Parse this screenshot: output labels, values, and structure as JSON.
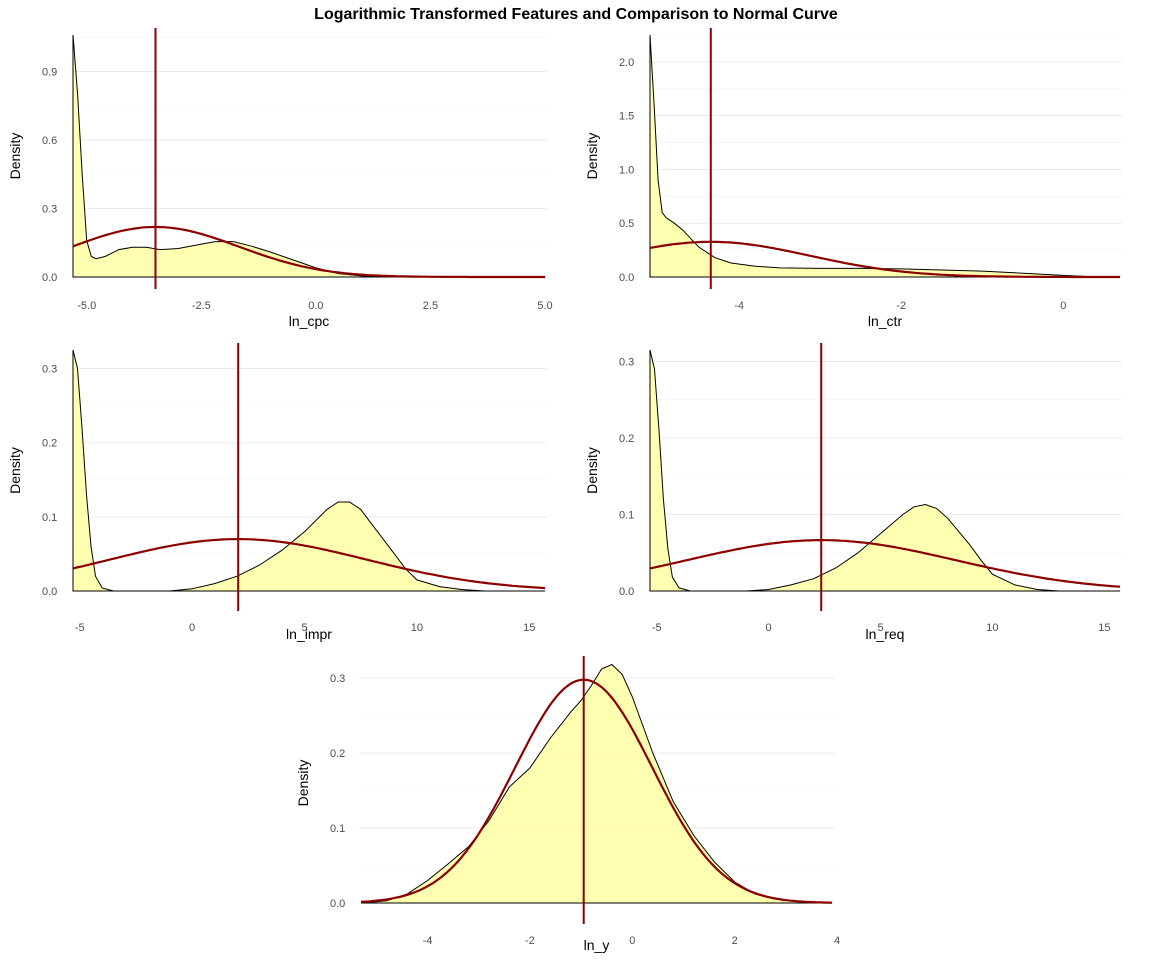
{
  "figure": {
    "title": "Logarithmic Transformed Features and Comparison to Normal Curve"
  },
  "colors": {
    "fill": "#ffffa8",
    "outline": "#000000",
    "normal": "#8b0000",
    "grid": "#ebebeb"
  },
  "chart_data": [
    {
      "type": "area",
      "id": "ln_cpc",
      "xlabel": "ln_cpc",
      "ylabel": "Density",
      "xlim": [
        -5.3,
        5.0
      ],
      "ylim": [
        0,
        1.06
      ],
      "xticks": [
        -5.0,
        -2.5,
        0.0,
        2.5,
        5.0
      ],
      "xtick_labels": [
        "-5.0",
        "-2.5",
        "0.0",
        "2.5",
        "5.0"
      ],
      "yticks": [
        0.0,
        0.3,
        0.6,
        0.9
      ],
      "ytick_labels": [
        "0.0",
        "0.3",
        "0.6",
        "0.9"
      ],
      "density_x": [
        -5.3,
        -5.2,
        -5.1,
        -5.0,
        -4.9,
        -4.8,
        -4.6,
        -4.3,
        -4.0,
        -3.7,
        -3.4,
        -3.0,
        -2.6,
        -2.2,
        -1.8,
        -1.4,
        -1.0,
        -0.5,
        0.0,
        0.5,
        1.0,
        1.5,
        2.0,
        3.0,
        4.0,
        5.0
      ],
      "density_y": [
        1.06,
        0.8,
        0.45,
        0.16,
        0.09,
        0.08,
        0.09,
        0.12,
        0.13,
        0.13,
        0.12,
        0.125,
        0.14,
        0.155,
        0.155,
        0.135,
        0.11,
        0.075,
        0.04,
        0.015,
        0.005,
        0.002,
        0.001,
        0.0,
        0.0,
        0.0
      ],
      "normal_mean": -3.5,
      "normal_sd": 1.82,
      "vline_x": -3.5
    },
    {
      "type": "area",
      "id": "ln_ctr",
      "xlabel": "ln_ctr",
      "ylabel": "Density",
      "xlim": [
        -5.1,
        0.7
      ],
      "ylim": [
        0,
        2.25
      ],
      "xticks": [
        -4,
        -2,
        0
      ],
      "xtick_labels": [
        "-4",
        "-2",
        "0"
      ],
      "yticks": [
        0.0,
        0.5,
        1.0,
        1.5,
        2.0
      ],
      "ytick_labels": [
        "0.0",
        "0.5",
        "1.0",
        "1.5",
        "2.0"
      ],
      "density_x": [
        -5.1,
        -5.05,
        -5.0,
        -4.95,
        -4.9,
        -4.8,
        -4.7,
        -4.6,
        -4.5,
        -4.3,
        -4.1,
        -3.8,
        -3.5,
        -3.0,
        -2.5,
        -2.0,
        -1.5,
        -1.0,
        -0.5,
        0.0,
        0.3,
        0.5,
        0.7
      ],
      "density_y": [
        2.25,
        1.6,
        0.9,
        0.6,
        0.55,
        0.5,
        0.44,
        0.36,
        0.28,
        0.18,
        0.13,
        0.1,
        0.085,
        0.08,
        0.08,
        0.075,
        0.065,
        0.055,
        0.035,
        0.015,
        0.005,
        0.001,
        0.0
      ],
      "normal_mean": -4.35,
      "normal_sd": 1.22,
      "vline_x": -4.35
    },
    {
      "type": "area",
      "id": "ln_impr",
      "xlabel": "ln_impr",
      "ylabel": "Density",
      "xlim": [
        -5.3,
        15.7
      ],
      "ylim": [
        0,
        0.325
      ],
      "xticks": [
        -5,
        0,
        5,
        10,
        15
      ],
      "xtick_labels": [
        "-5",
        "0",
        "5",
        "10",
        "15"
      ],
      "yticks": [
        0.0,
        0.1,
        0.2,
        0.3
      ],
      "ytick_labels": [
        "0.0",
        "0.1",
        "0.2",
        "0.3"
      ],
      "density_x": [
        -5.3,
        -5.1,
        -4.9,
        -4.7,
        -4.5,
        -4.3,
        -4.0,
        -3.5,
        -3.0,
        -1.0,
        0.0,
        1.0,
        2.0,
        3.0,
        4.0,
        5.0,
        6.0,
        6.5,
        7.0,
        7.5,
        8.0,
        9.0,
        9.5,
        10.0,
        11.0,
        12.0,
        13.0,
        14.0,
        15.7
      ],
      "density_y": [
        0.325,
        0.3,
        0.22,
        0.13,
        0.06,
        0.02,
        0.004,
        0.0,
        0.0,
        0.0,
        0.003,
        0.01,
        0.02,
        0.035,
        0.055,
        0.08,
        0.11,
        0.12,
        0.12,
        0.11,
        0.09,
        0.05,
        0.03,
        0.015,
        0.006,
        0.002,
        0.0,
        0.0,
        0.0
      ],
      "normal_mean": 2.05,
      "normal_sd": 5.7,
      "vline_x": 2.05
    },
    {
      "type": "area",
      "id": "ln_req",
      "xlabel": "ln_req",
      "ylabel": "Density",
      "xlim": [
        -5.3,
        15.7
      ],
      "ylim": [
        0,
        0.315
      ],
      "xticks": [
        -5,
        0,
        5,
        10,
        15
      ],
      "xtick_labels": [
        "-5",
        "0",
        "5",
        "10",
        "15"
      ],
      "yticks": [
        0.0,
        0.1,
        0.2,
        0.3
      ],
      "ytick_labels": [
        "0.0",
        "0.1",
        "0.2",
        "0.3"
      ],
      "density_x": [
        -5.3,
        -5.1,
        -4.9,
        -4.7,
        -4.5,
        -4.3,
        -4.0,
        -3.5,
        -3.0,
        -1.0,
        0.0,
        1.0,
        2.0,
        3.0,
        4.0,
        5.0,
        6.0,
        6.5,
        7.0,
        7.5,
        8.0,
        9.0,
        9.5,
        10.0,
        11.0,
        12.0,
        13.0,
        14.0,
        15.7
      ],
      "density_y": [
        0.315,
        0.29,
        0.21,
        0.12,
        0.055,
        0.018,
        0.004,
        0.0,
        0.0,
        0.0,
        0.002,
        0.008,
        0.016,
        0.03,
        0.05,
        0.075,
        0.1,
        0.11,
        0.113,
        0.108,
        0.095,
        0.06,
        0.04,
        0.022,
        0.008,
        0.002,
        0.0,
        0.0,
        0.0
      ],
      "normal_mean": 2.35,
      "normal_sd": 6.0,
      "vline_x": 2.35
    },
    {
      "type": "area",
      "id": "ln_y",
      "xlabel": "ln_y",
      "ylabel": "Density",
      "xlim": [
        -5.3,
        3.9
      ],
      "ylim": [
        0,
        0.32
      ],
      "xticks": [
        -4,
        -2,
        0,
        2,
        4
      ],
      "xtick_labels": [
        "-4",
        "-2",
        "0",
        "2",
        "4"
      ],
      "yticks": [
        0.0,
        0.1,
        0.2,
        0.3
      ],
      "ytick_labels": [
        "0.0",
        "0.1",
        "0.2",
        "0.3"
      ],
      "density_x": [
        -5.3,
        -4.8,
        -4.4,
        -4.0,
        -3.6,
        -3.2,
        -2.8,
        -2.4,
        -2.0,
        -1.6,
        -1.2,
        -1.0,
        -0.8,
        -0.6,
        -0.4,
        -0.2,
        0.0,
        0.4,
        0.8,
        1.2,
        1.6,
        2.0,
        2.4,
        2.8,
        3.2,
        3.6,
        3.9
      ],
      "density_y": [
        0.0,
        0.003,
        0.012,
        0.03,
        0.052,
        0.075,
        0.11,
        0.155,
        0.18,
        0.22,
        0.255,
        0.27,
        0.29,
        0.312,
        0.318,
        0.305,
        0.275,
        0.2,
        0.135,
        0.09,
        0.055,
        0.028,
        0.012,
        0.005,
        0.002,
        0.0,
        0.0
      ],
      "normal_mean": -0.95,
      "normal_sd": 1.34,
      "vline_x": -0.95
    }
  ]
}
